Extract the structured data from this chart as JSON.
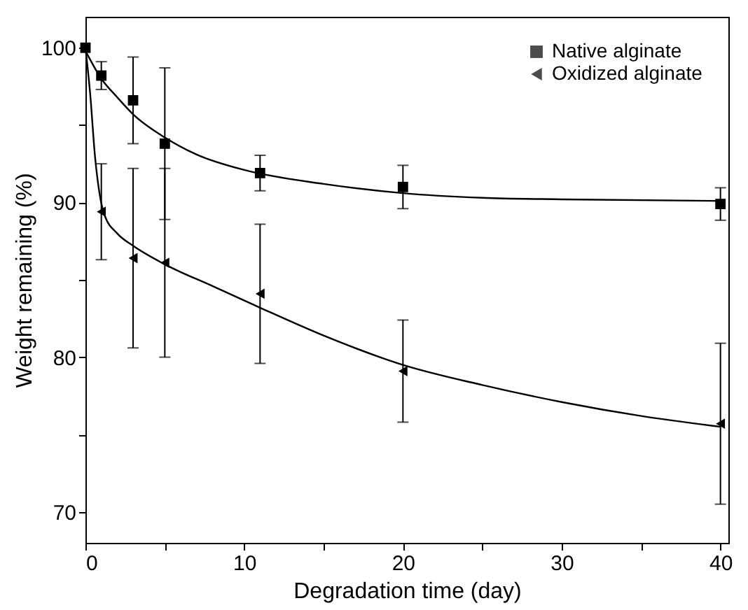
{
  "chart_data": {
    "type": "scatter",
    "xlabel": "Degradation time (day)",
    "ylabel": "Weight remaining (%)",
    "xlim": [
      0,
      40.5
    ],
    "ylim": [
      68,
      102
    ],
    "xticks": [
      0,
      {
        "value": 5,
        "label": null
      },
      10,
      {
        "value": 15,
        "label": null
      },
      20,
      {
        "value": 25,
        "label": null
      },
      30,
      {
        "value": 35,
        "label": null
      },
      40
    ],
    "yticks": [
      70,
      {
        "value": 75,
        "label": null
      },
      80,
      {
        "value": 85,
        "label": null
      },
      90,
      {
        "value": 95,
        "label": null
      },
      100
    ],
    "grid": false,
    "legend": "top right",
    "series": [
      {
        "name": "Native alginate",
        "color": "#000000",
        "marker": "square",
        "x": [
          0,
          1,
          3,
          5,
          11,
          20,
          40
        ],
        "values": [
          100,
          98.2,
          96.6,
          93.8,
          91.9,
          91.0,
          89.9
        ],
        "errors": [
          null,
          0.9,
          2.8,
          4.9,
          1.15,
          1.4,
          1.05
        ]
      },
      {
        "name": "Oxidized alginate",
        "color": "#000000",
        "marker": "triangle",
        "x": [
          1,
          3,
          5,
          11,
          20,
          40
        ],
        "values": [
          89.4,
          86.4,
          86.1,
          84.1,
          79.1,
          75.7
        ],
        "errors": [
          3.1,
          5.8,
          6.1,
          4.5,
          3.3,
          5.2
        ]
      },
      {
        "type": "line",
        "color": "#000000",
        "line_style": "solid",
        "x": [
          0,
          1,
          2,
          3,
          5,
          7,
          10,
          15,
          20,
          25,
          30,
          40
        ],
        "values": [
          99.8,
          98.0,
          96.8,
          95.7,
          94.2,
          93.1,
          92.1,
          91.2,
          90.6,
          90.3,
          90.2,
          90.1
        ]
      },
      {
        "type": "line",
        "color": "#000000",
        "line_style": "solid",
        "x": [
          0,
          0.3,
          0.6,
          0.9,
          1.2,
          2,
          3,
          5,
          8,
          11,
          15,
          20,
          25,
          30,
          35,
          40
        ],
        "values": [
          100,
          97,
          93,
          90.5,
          89.2,
          88,
          87.2,
          86,
          84.6,
          83.2,
          81.4,
          79.5,
          78.2,
          77.1,
          76.2,
          75.5
        ]
      }
    ]
  }
}
